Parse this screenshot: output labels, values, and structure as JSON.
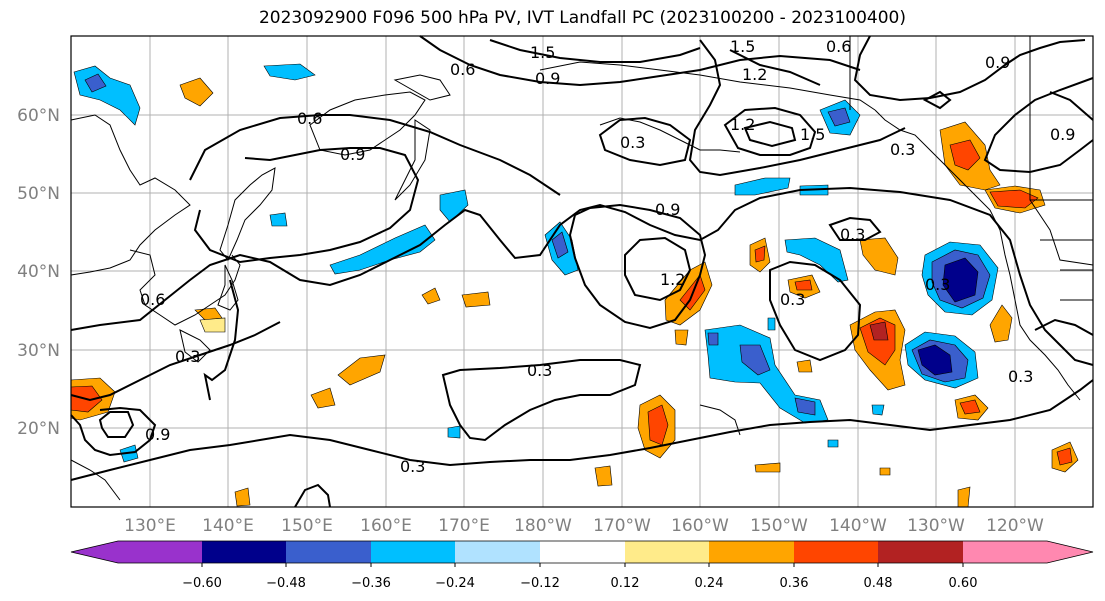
{
  "title": "2023092900 F096 500 hPa PV, IVT Landfall PC (2023100200 - 2023100400)",
  "lat_labels": [
    "60°N",
    "50°N",
    "40°N",
    "30°N",
    "20°N"
  ],
  "lon_labels": [
    "130°E",
    "140°E",
    "150°E",
    "160°E",
    "170°E",
    "180°W",
    "170°W",
    "160°W",
    "150°W",
    "140°W",
    "130°W",
    "120°W"
  ],
  "contour_labels": [
    "1.5",
    "1.5",
    "0.9",
    "0.6",
    "0.6",
    "1.2",
    "0.9",
    "0.6",
    "1.2",
    "0.3",
    "1.5",
    "0.9",
    "0.9",
    "0.3",
    "0.9",
    "1.2",
    "0.3",
    "0.3",
    "0.3",
    "0.3",
    "0.3",
    "0.9",
    "0.6",
    "0.3",
    "0.3"
  ],
  "colorbar": {
    "colors": [
      "#9932cc",
      "#00008b",
      "#3a5fcd",
      "#00bfff",
      "#b0e2ff",
      "#ffffff",
      "#ffeb8a",
      "#ffa500",
      "#ff4500",
      "#b22222",
      "#ff88b0"
    ],
    "tick_labels": [
      "−0.60",
      "−0.48",
      "−0.36",
      "−0.24",
      "−0.12",
      "0.12",
      "0.24",
      "0.36",
      "0.48",
      "0.60"
    ]
  }
}
